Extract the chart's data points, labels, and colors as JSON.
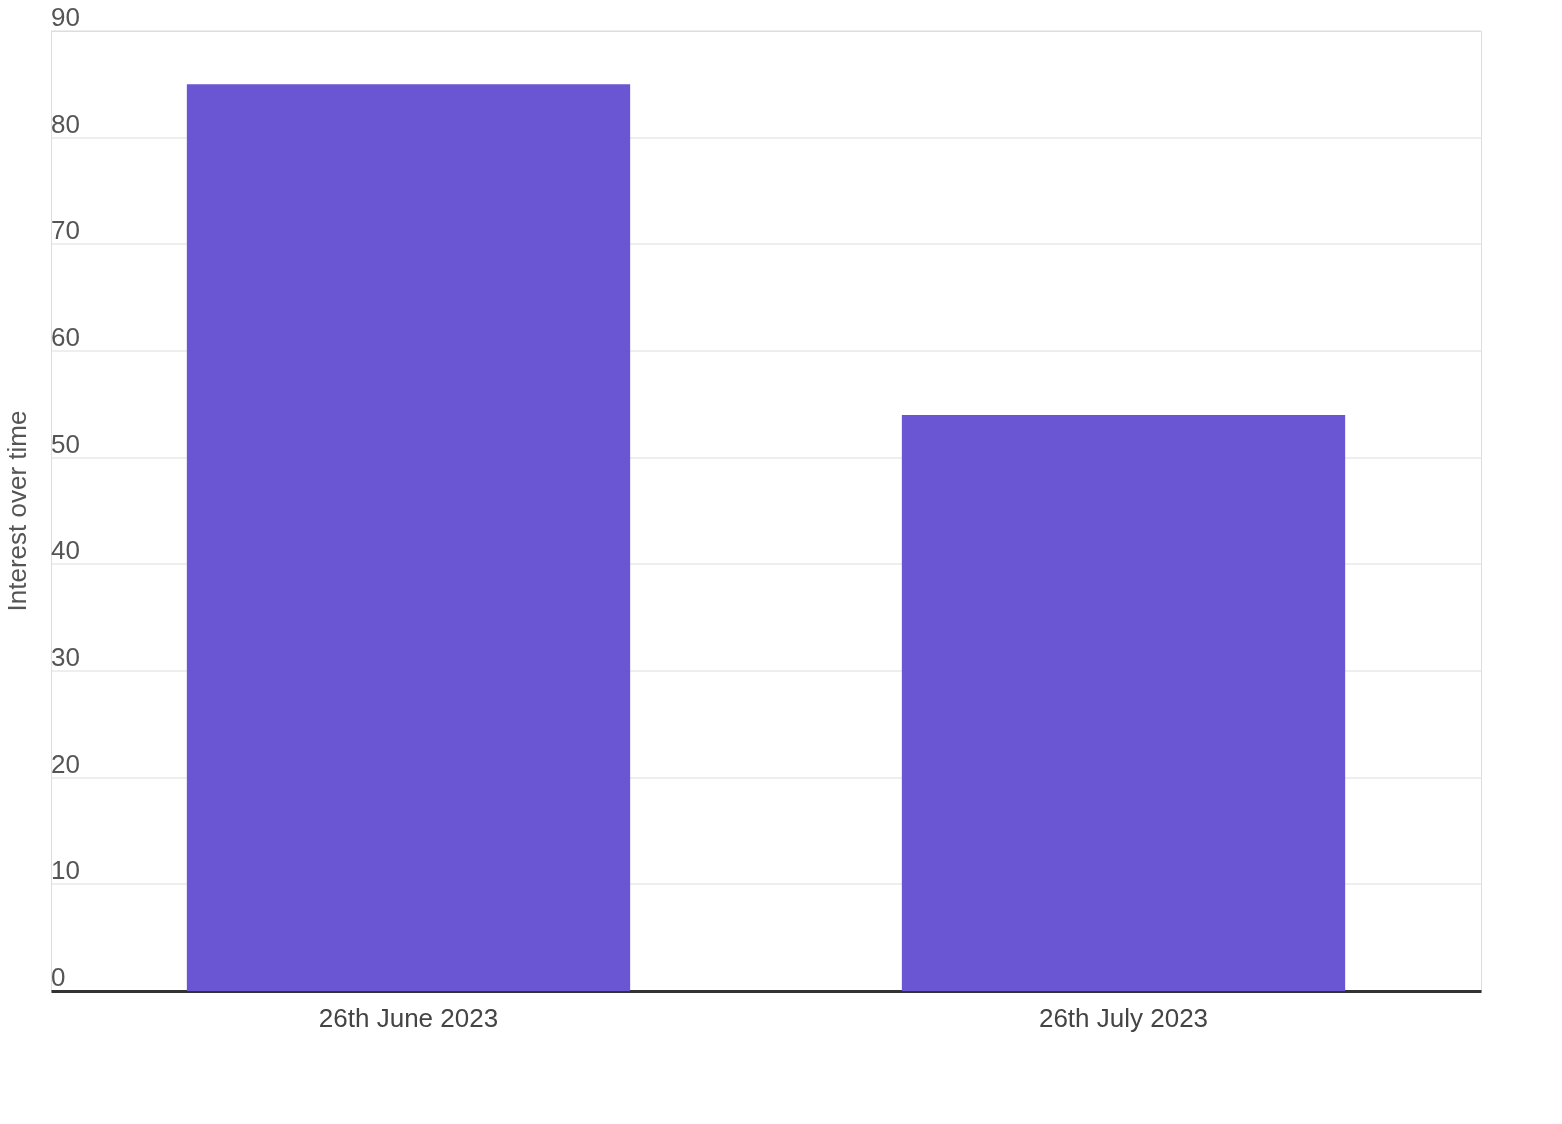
{
  "chart_data": {
    "type": "bar",
    "ylabel": "Interest over time",
    "categories": [
      "26th June 2023",
      "26th July 2023"
    ],
    "values": [
      85,
      54
    ],
    "color": "#6a55d3",
    "ylim": [
      0,
      90
    ],
    "yticks": [
      0,
      10,
      20,
      30,
      40,
      50,
      60,
      70,
      80,
      90
    ],
    "grid": "y"
  }
}
